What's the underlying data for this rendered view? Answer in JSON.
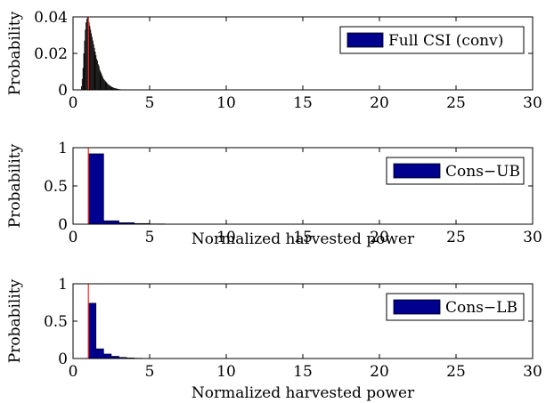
{
  "chart_data": [
    {
      "type": "bar",
      "xlim": [
        0,
        30
      ],
      "ylim": [
        0,
        0.04
      ],
      "xticks": [
        "0",
        "5",
        "10",
        "15",
        "20",
        "25",
        "30"
      ],
      "yticks": [
        "0",
        "0.02",
        "0.04"
      ],
      "xlabel": "",
      "ylabel": "Probability",
      "legend": {
        "label": "Full CSI (conv)",
        "position": "top-right"
      },
      "bar_color": "#000000",
      "reference_line": {
        "x": 1,
        "color": "#e0302c"
      },
      "series": [
        {
          "name": "Full CSI (conv)",
          "x": [
            0.55,
            0.6,
            0.65,
            0.7,
            0.75,
            0.8,
            0.85,
            0.9,
            0.95,
            1.0,
            1.05,
            1.1,
            1.15,
            1.2,
            1.25,
            1.3,
            1.35,
            1.4,
            1.45,
            1.5,
            1.55,
            1.6,
            1.65,
            1.7,
            1.75,
            1.8,
            1.85,
            1.9,
            1.95,
            2.0,
            2.05,
            2.1,
            2.15,
            2.2,
            2.25,
            2.3,
            2.35,
            2.4,
            2.45,
            2.5,
            2.55,
            2.6,
            2.65,
            2.7,
            2.75,
            2.8,
            2.85,
            2.9,
            2.95,
            3.0,
            3.05,
            3.1,
            3.15,
            3.2,
            3.25,
            3.3,
            3.35,
            3.4,
            3.45,
            3.5,
            3.6,
            3.7,
            3.8,
            3.9,
            4.0
          ],
          "values": [
            0.002,
            0.006,
            0.012,
            0.02,
            0.027,
            0.033,
            0.037,
            0.039,
            0.04,
            0.039,
            0.037,
            0.035,
            0.033,
            0.031,
            0.029,
            0.027,
            0.025,
            0.023,
            0.021,
            0.019,
            0.017,
            0.016,
            0.014,
            0.013,
            0.011,
            0.01,
            0.009,
            0.008,
            0.007,
            0.006,
            0.0055,
            0.005,
            0.0045,
            0.004,
            0.0035,
            0.003,
            0.0027,
            0.0024,
            0.0021,
            0.0018,
            0.0016,
            0.0014,
            0.0012,
            0.001,
            0.0009,
            0.0008,
            0.0007,
            0.0006,
            0.0005,
            0.0004,
            0.00035,
            0.0003,
            0.00025,
            0.0002,
            0.00018,
            0.00015,
            0.00012,
            0.0001,
            8e-05,
            6e-05,
            5e-05,
            4e-05,
            3e-05,
            2e-05,
            1e-05
          ]
        }
      ]
    },
    {
      "type": "bar",
      "xlim": [
        0,
        30
      ],
      "ylim": [
        0,
        1
      ],
      "xticks": [
        "0",
        "5",
        "10",
        "15",
        "20",
        "25",
        "30"
      ],
      "yticks": [
        "0",
        "0.5",
        "1"
      ],
      "xlabel": "Normalized harvested power",
      "ylabel": "Probability",
      "legend": {
        "label": "Cons−UB",
        "position": "top-right"
      },
      "bar_color": "#00008f",
      "reference_line": {
        "x": 1,
        "color": "#e0302c"
      },
      "series": [
        {
          "name": "Cons−UB",
          "x": [
            1.5,
            2.5,
            3.5,
            4.5,
            5.5,
            6.5,
            7.5
          ],
          "values": [
            0.92,
            0.045,
            0.02,
            0.009,
            0.004,
            0.002,
            0.001
          ]
        }
      ]
    },
    {
      "type": "bar",
      "xlim": [
        0,
        30
      ],
      "ylim": [
        0,
        1
      ],
      "xticks": [
        "0",
        "5",
        "10",
        "15",
        "20",
        "25",
        "30"
      ],
      "yticks": [
        "0",
        "0.5",
        "1"
      ],
      "xlabel": "Normalized harvested power",
      "ylabel": "Probability",
      "legend": {
        "label": "Cons−LB",
        "position": "top-right"
      },
      "bar_color": "#00008f",
      "reference_line": {
        "x": 1,
        "color": "#e0302c"
      },
      "series": [
        {
          "name": "Cons−LB",
          "x": [
            1.25,
            1.75,
            2.25,
            2.75,
            3.25,
            3.75,
            4.25,
            4.75,
            5.25
          ],
          "values": [
            0.74,
            0.13,
            0.06,
            0.03,
            0.015,
            0.008,
            0.004,
            0.002,
            0.001
          ]
        }
      ]
    }
  ]
}
